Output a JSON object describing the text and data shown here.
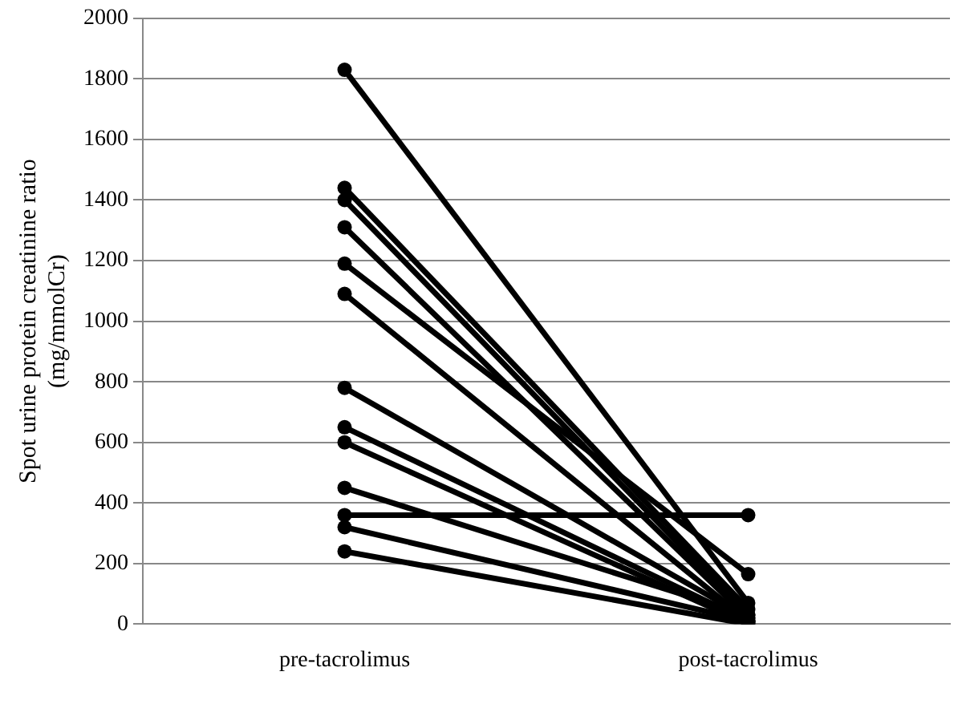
{
  "chart_data": {
    "type": "line",
    "ylabel": "Spot urine protein creatinine ratio\n(mg/mmolCr)",
    "categories": [
      "pre-tacrolimus",
      "post-tacrolimus"
    ],
    "series": [
      {
        "color": "#000000",
        "values": [
          1830,
          70
        ]
      },
      {
        "color": "#000000",
        "values": [
          1440,
          50
        ]
      },
      {
        "color": "#000000",
        "values": [
          1400,
          30
        ]
      },
      {
        "color": "#000000",
        "values": [
          1310,
          20
        ]
      },
      {
        "color": "#000000",
        "values": [
          1190,
          165
        ]
      },
      {
        "color": "#000000",
        "values": [
          1090,
          10
        ]
      },
      {
        "color": "#000000",
        "values": [
          780,
          20
        ]
      },
      {
        "color": "#000000",
        "values": [
          650,
          10
        ]
      },
      {
        "color": "#000000",
        "values": [
          600,
          0
        ]
      },
      {
        "color": "#000000",
        "values": [
          450,
          30
        ]
      },
      {
        "color": "#000000",
        "values": [
          360,
          360
        ]
      },
      {
        "color": "#000000",
        "values": [
          320,
          10
        ]
      },
      {
        "color": "#000000",
        "values": [
          240,
          0
        ]
      }
    ],
    "ylim": [
      0,
      2000
    ],
    "yticks": [
      0,
      200,
      400,
      600,
      800,
      1000,
      1200,
      1400,
      1600,
      1800,
      2000
    ],
    "grid": "y",
    "legend": false,
    "marker": "circle",
    "line_style": "solid"
  }
}
